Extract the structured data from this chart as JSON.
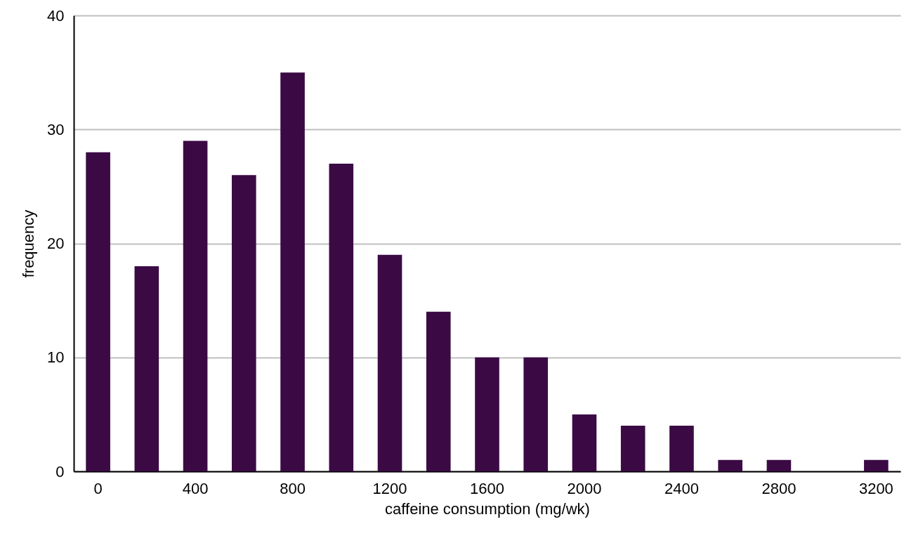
{
  "chart_data": {
    "type": "bar",
    "xlabel": "caffeine consumption (mg/wk)",
    "ylabel": "frequency",
    "categories": [
      "0",
      null,
      "400",
      null,
      "800",
      null,
      "1200",
      null,
      "1600",
      null,
      "2000",
      null,
      "2400",
      null,
      "2800",
      null,
      "3200"
    ],
    "values": [
      28,
      18,
      29,
      26,
      35,
      27,
      19,
      14,
      10,
      10,
      5,
      4,
      4,
      1,
      1,
      0,
      1
    ],
    "color": "#3b0a45",
    "ylim": [
      0,
      40
    ],
    "yticks": [
      0,
      10,
      20,
      30,
      40
    ],
    "grid": "y"
  }
}
